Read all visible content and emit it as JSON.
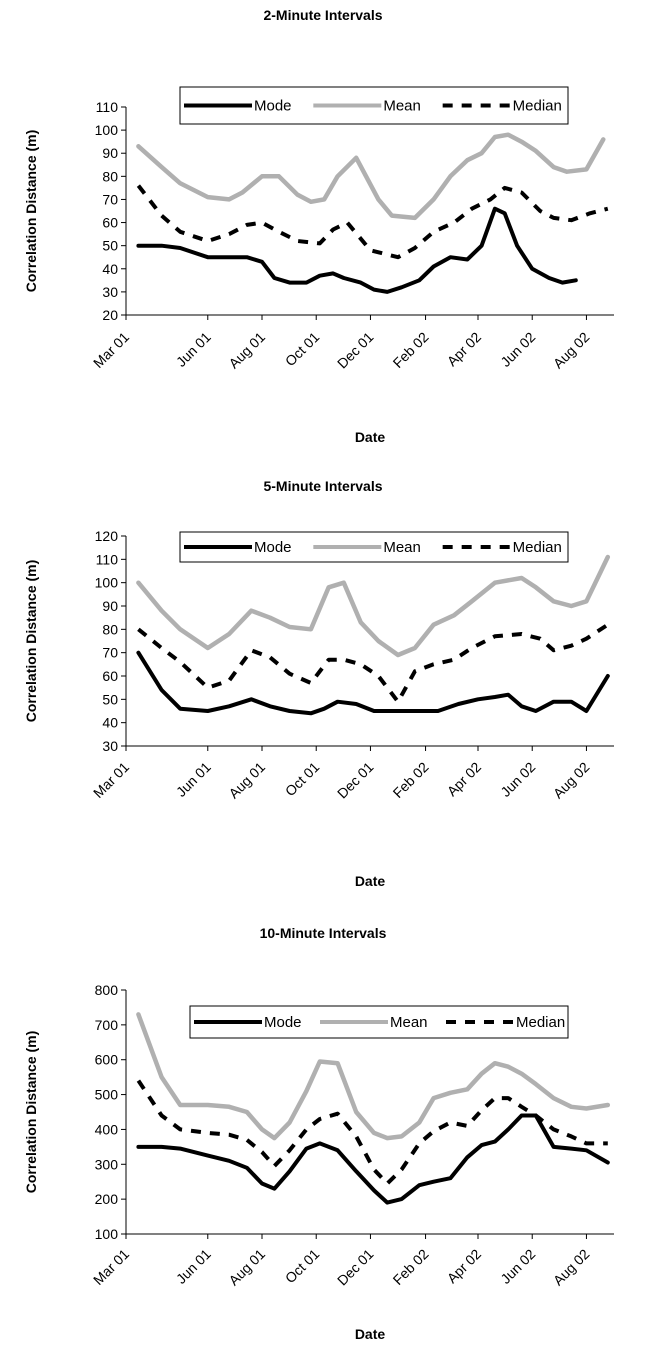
{
  "chart_data": [
    {
      "type": "line",
      "title": "2-Minute Intervals",
      "xlabel": "Date",
      "ylabel": "Correlation Distance (m)",
      "ylim": [
        20,
        110
      ],
      "yticks": [
        20,
        30,
        40,
        50,
        60,
        70,
        80,
        90,
        100,
        110
      ],
      "xticks": [
        "Mar 01",
        "Jun 01",
        "Aug 01",
        "Oct 01",
        "Dec 01",
        "Feb 02",
        "Apr 02",
        "Jun 02",
        "Aug 02"
      ],
      "xlim": [
        "2001-03-01",
        "2002-09-01"
      ],
      "legend": "top",
      "series": [
        {
          "name": "Mode",
          "color": "#000000",
          "style": "solid",
          "x": [
            "2001-03-15",
            "2001-04-10",
            "2001-05-01",
            "2001-06-01",
            "2001-06-25",
            "2001-07-15",
            "2001-08-01",
            "2001-08-15",
            "2001-09-01",
            "2001-09-20",
            "2001-10-05",
            "2001-10-20",
            "2001-11-01",
            "2001-11-20",
            "2001-12-05",
            "2001-12-20",
            "2002-01-05",
            "2002-01-25",
            "2002-02-10",
            "2002-03-01",
            "2002-03-20",
            "2002-04-05",
            "2002-04-20",
            "2002-05-01",
            "2002-05-15",
            "2002-06-01",
            "2002-06-20",
            "2002-07-05",
            "2002-07-20"
          ],
          "values": [
            50,
            50,
            49,
            45,
            45,
            45,
            43,
            36,
            34,
            34,
            37,
            38,
            36,
            34,
            31,
            30,
            32,
            35,
            41,
            45,
            44,
            50,
            66,
            64,
            50,
            40,
            36,
            34,
            35
          ]
        },
        {
          "name": "Mean",
          "color": "#b0b0b0",
          "style": "solid",
          "x": [
            "2001-03-15",
            "2001-04-10",
            "2001-05-01",
            "2001-06-01",
            "2001-06-25",
            "2001-07-10",
            "2001-08-01",
            "2001-08-20",
            "2001-09-10",
            "2001-09-25",
            "2001-10-10",
            "2001-10-25",
            "2001-11-15",
            "2001-12-10",
            "2001-12-25",
            "2002-01-20",
            "2002-02-10",
            "2002-03-01",
            "2002-03-20",
            "2002-04-05",
            "2002-04-20",
            "2002-05-05",
            "2002-05-20",
            "2002-06-05",
            "2002-06-25",
            "2002-07-10",
            "2002-08-01",
            "2002-08-20"
          ],
          "values": [
            93,
            84,
            77,
            71,
            70,
            73,
            80,
            80,
            72,
            69,
            70,
            80,
            88,
            70,
            63,
            62,
            70,
            80,
            87,
            90,
            97,
            98,
            95,
            91,
            84,
            82,
            83,
            96
          ]
        },
        {
          "name": "Median",
          "color": "#000000",
          "style": "dashed",
          "x": [
            "2001-03-15",
            "2001-04-10",
            "2001-05-01",
            "2001-06-01",
            "2001-06-25",
            "2001-07-15",
            "2001-08-01",
            "2001-08-20",
            "2001-09-10",
            "2001-10-05",
            "2001-10-20",
            "2001-11-05",
            "2001-12-01",
            "2002-01-01",
            "2002-01-20",
            "2002-02-10",
            "2002-03-05",
            "2002-03-25",
            "2002-04-15",
            "2002-05-01",
            "2002-05-20",
            "2002-06-10",
            "2002-06-25",
            "2002-07-15",
            "2002-08-05",
            "2002-08-25"
          ],
          "values": [
            76,
            63,
            56,
            52,
            55,
            59,
            60,
            56,
            52,
            51,
            57,
            60,
            48,
            45,
            49,
            56,
            60,
            66,
            70,
            75,
            73,
            65,
            62,
            61,
            64,
            66
          ]
        }
      ]
    },
    {
      "type": "line",
      "title": "5-Minute Intervals",
      "xlabel": "Date",
      "ylabel": "Correlation Distance (m)",
      "ylim": [
        30,
        120
      ],
      "yticks": [
        30,
        40,
        50,
        60,
        70,
        80,
        90,
        100,
        110,
        120
      ],
      "xticks": [
        "Mar 01",
        "Jun 01",
        "Aug 01",
        "Oct 01",
        "Dec 01",
        "Feb 02",
        "Apr 02",
        "Jun 02",
        "Aug 02"
      ],
      "xlim": [
        "2001-03-01",
        "2002-09-01"
      ],
      "legend": "top",
      "series": [
        {
          "name": "Mode",
          "color": "#000000",
          "style": "solid",
          "x": [
            "2001-03-15",
            "2001-04-10",
            "2001-05-01",
            "2001-06-01",
            "2001-06-25",
            "2001-07-20",
            "2001-08-10",
            "2001-09-01",
            "2001-09-25",
            "2001-10-10",
            "2001-10-25",
            "2001-11-15",
            "2001-12-05",
            "2002-01-01",
            "2002-01-25",
            "2002-02-15",
            "2002-03-10",
            "2002-04-01",
            "2002-04-20",
            "2002-05-05",
            "2002-05-20",
            "2002-06-05",
            "2002-06-25",
            "2002-07-15",
            "2002-08-01",
            "2002-08-25"
          ],
          "values": [
            70,
            54,
            46,
            45,
            47,
            50,
            47,
            45,
            44,
            46,
            49,
            48,
            45,
            45,
            45,
            45,
            48,
            50,
            51,
            52,
            47,
            45,
            49,
            49,
            45,
            60
          ]
        },
        {
          "name": "Mean",
          "color": "#b0b0b0",
          "style": "solid",
          "x": [
            "2001-03-15",
            "2001-04-10",
            "2001-05-01",
            "2001-06-01",
            "2001-06-25",
            "2001-07-20",
            "2001-08-10",
            "2001-09-01",
            "2001-09-25",
            "2001-10-15",
            "2001-11-01",
            "2001-11-20",
            "2001-12-10",
            "2002-01-01",
            "2002-01-20",
            "2002-02-10",
            "2002-03-05",
            "2002-03-25",
            "2002-04-20",
            "2002-05-20",
            "2002-06-05",
            "2002-06-25",
            "2002-07-15",
            "2002-08-01",
            "2002-08-25"
          ],
          "values": [
            100,
            88,
            80,
            72,
            78,
            88,
            85,
            81,
            80,
            98,
            100,
            83,
            75,
            69,
            72,
            82,
            86,
            92,
            100,
            102,
            98,
            92,
            90,
            92,
            111
          ]
        },
        {
          "name": "Median",
          "color": "#000000",
          "style": "dashed",
          "x": [
            "2001-03-15",
            "2001-04-10",
            "2001-05-01",
            "2001-06-01",
            "2001-06-25",
            "2001-07-20",
            "2001-08-10",
            "2001-09-01",
            "2001-09-25",
            "2001-10-15",
            "2001-11-01",
            "2001-11-20",
            "2001-12-10",
            "2002-01-01",
            "2002-01-20",
            "2002-02-10",
            "2002-03-05",
            "2002-03-25",
            "2002-04-20",
            "2002-05-20",
            "2002-06-10",
            "2002-06-25",
            "2002-07-15",
            "2002-08-01",
            "2002-08-25"
          ],
          "values": [
            80,
            72,
            66,
            55,
            58,
            71,
            68,
            61,
            57,
            67,
            67,
            65,
            60,
            49,
            62,
            65,
            67,
            72,
            77,
            78,
            76,
            71,
            73,
            76,
            82
          ]
        }
      ]
    },
    {
      "type": "line",
      "title": "10-Minute Intervals",
      "xlabel": "Date",
      "ylabel": "Correlation Distance (m)",
      "ylim": [
        100,
        800
      ],
      "yticks": [
        100,
        200,
        300,
        400,
        500,
        600,
        700,
        800
      ],
      "xticks": [
        "Mar 01",
        "Jun 01",
        "Aug 01",
        "Oct 01",
        "Dec 01",
        "Feb 02",
        "Apr 02",
        "Jun 02",
        "Aug 02"
      ],
      "xlim": [
        "2001-03-01",
        "2002-09-01"
      ],
      "legend": "top",
      "series": [
        {
          "name": "Mode",
          "color": "#000000",
          "style": "solid",
          "x": [
            "2001-03-15",
            "2001-04-10",
            "2001-05-01",
            "2001-06-01",
            "2001-06-25",
            "2001-07-15",
            "2001-08-01",
            "2001-08-15",
            "2001-09-01",
            "2001-09-20",
            "2001-10-05",
            "2001-10-25",
            "2001-11-15",
            "2001-12-05",
            "2001-12-20",
            "2002-01-05",
            "2002-01-25",
            "2002-02-10",
            "2002-03-01",
            "2002-03-20",
            "2002-04-05",
            "2002-04-20",
            "2002-05-05",
            "2002-05-20",
            "2002-06-05",
            "2002-06-25",
            "2002-07-15",
            "2002-08-01",
            "2002-08-25"
          ],
          "values": [
            350,
            350,
            345,
            325,
            310,
            290,
            245,
            230,
            280,
            345,
            360,
            340,
            280,
            225,
            190,
            200,
            240,
            250,
            260,
            320,
            355,
            365,
            400,
            440,
            440,
            350,
            345,
            340,
            305
          ]
        },
        {
          "name": "Mean",
          "color": "#b0b0b0",
          "style": "solid",
          "x": [
            "2001-03-15",
            "2001-04-10",
            "2001-05-01",
            "2001-06-01",
            "2001-06-25",
            "2001-07-15",
            "2001-08-01",
            "2001-08-15",
            "2001-09-01",
            "2001-09-20",
            "2001-10-05",
            "2001-10-25",
            "2001-11-15",
            "2001-12-05",
            "2001-12-20",
            "2002-01-05",
            "2002-01-25",
            "2002-02-10",
            "2002-03-01",
            "2002-03-20",
            "2002-04-05",
            "2002-04-20",
            "2002-05-05",
            "2002-05-20",
            "2002-06-05",
            "2002-06-25",
            "2002-07-15",
            "2002-08-01",
            "2002-08-25"
          ],
          "values": [
            730,
            550,
            470,
            470,
            465,
            450,
            400,
            375,
            420,
            510,
            595,
            590,
            450,
            390,
            375,
            380,
            420,
            490,
            505,
            515,
            560,
            590,
            580,
            560,
            530,
            490,
            465,
            460,
            470
          ]
        },
        {
          "name": "Median",
          "color": "#000000",
          "style": "dashed",
          "x": [
            "2001-03-15",
            "2001-04-10",
            "2001-05-01",
            "2001-06-01",
            "2001-06-25",
            "2001-07-15",
            "2001-08-01",
            "2001-08-15",
            "2001-09-01",
            "2001-09-20",
            "2001-10-05",
            "2001-10-25",
            "2001-11-15",
            "2001-12-05",
            "2001-12-20",
            "2002-01-05",
            "2002-01-25",
            "2002-02-10",
            "2002-03-01",
            "2002-03-20",
            "2002-04-05",
            "2002-04-20",
            "2002-05-05",
            "2002-05-20",
            "2002-06-05",
            "2002-06-25",
            "2002-07-15",
            "2002-08-01",
            "2002-08-25"
          ],
          "values": [
            540,
            440,
            400,
            390,
            385,
            370,
            335,
            295,
            340,
            400,
            430,
            445,
            380,
            285,
            245,
            285,
            360,
            395,
            420,
            410,
            455,
            490,
            490,
            465,
            440,
            400,
            380,
            360,
            360
          ]
        }
      ]
    }
  ]
}
